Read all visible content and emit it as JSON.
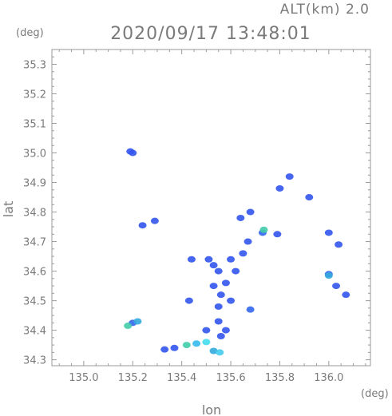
{
  "header": {
    "altitude_label": "ALT(km)  2.0",
    "timestamp": "2020/09/17 13:48:01",
    "y_unit": "(deg)",
    "x_unit": "(deg)"
  },
  "chart_data": {
    "type": "heatmap",
    "title": "2020/09/17 13:48:01",
    "subtitle": "ALT(km)  2.0",
    "xlabel": "lon",
    "ylabel": "lat",
    "xlim": [
      134.87,
      136.17
    ],
    "ylim": [
      34.28,
      35.35
    ],
    "xticks": [
      135.0,
      135.2,
      135.4,
      135.6,
      135.8,
      136.0
    ],
    "yticks": [
      34.3,
      34.4,
      34.5,
      34.6,
      34.7,
      34.8,
      34.9,
      35.0,
      35.1,
      35.2,
      35.3
    ],
    "grid": false,
    "echo_cells": [
      {
        "lon": 135.19,
        "lat": 35.005,
        "color": "#3355ee"
      },
      {
        "lon": 135.2,
        "lat": 35.0,
        "color": "#3355ee"
      },
      {
        "lon": 135.2,
        "lat": 34.425,
        "color": "#3366ee"
      },
      {
        "lon": 135.22,
        "lat": 34.43,
        "color": "#33aadd"
      },
      {
        "lon": 135.18,
        "lat": 34.415,
        "color": "#44ccaa"
      },
      {
        "lon": 135.24,
        "lat": 34.755,
        "color": "#3355ee"
      },
      {
        "lon": 135.29,
        "lat": 34.77,
        "color": "#3355ee"
      },
      {
        "lon": 135.44,
        "lat": 34.64,
        "color": "#3355ee"
      },
      {
        "lon": 135.43,
        "lat": 34.5,
        "color": "#3355ee"
      },
      {
        "lon": 135.51,
        "lat": 34.64,
        "color": "#3355ee"
      },
      {
        "lon": 135.53,
        "lat": 34.62,
        "color": "#3355ee"
      },
      {
        "lon": 135.55,
        "lat": 34.6,
        "color": "#3355ee"
      },
      {
        "lon": 135.53,
        "lat": 34.55,
        "color": "#3355ee"
      },
      {
        "lon": 135.56,
        "lat": 34.52,
        "color": "#3355ee"
      },
      {
        "lon": 135.55,
        "lat": 34.48,
        "color": "#3355ee"
      },
      {
        "lon": 135.58,
        "lat": 34.56,
        "color": "#3355ee"
      },
      {
        "lon": 135.6,
        "lat": 34.5,
        "color": "#3355ee"
      },
      {
        "lon": 135.6,
        "lat": 34.64,
        "color": "#3355ee"
      },
      {
        "lon": 135.62,
        "lat": 34.6,
        "color": "#3355ee"
      },
      {
        "lon": 135.65,
        "lat": 34.66,
        "color": "#3355ee"
      },
      {
        "lon": 135.67,
        "lat": 34.7,
        "color": "#3355ee"
      },
      {
        "lon": 135.68,
        "lat": 34.47,
        "color": "#3366ee"
      },
      {
        "lon": 135.55,
        "lat": 34.43,
        "color": "#3355ee"
      },
      {
        "lon": 135.5,
        "lat": 34.4,
        "color": "#3355ee"
      },
      {
        "lon": 135.58,
        "lat": 34.4,
        "color": "#3355ee"
      },
      {
        "lon": 135.73,
        "lat": 34.73,
        "color": "#3366ee"
      },
      {
        "lon": 135.735,
        "lat": 34.74,
        "color": "#44ccaa"
      },
      {
        "lon": 135.79,
        "lat": 34.725,
        "color": "#3355ee"
      },
      {
        "lon": 135.8,
        "lat": 34.88,
        "color": "#3355ee"
      },
      {
        "lon": 135.84,
        "lat": 34.92,
        "color": "#3355ee"
      },
      {
        "lon": 135.92,
        "lat": 34.85,
        "color": "#3355ee"
      },
      {
        "lon": 135.68,
        "lat": 34.8,
        "color": "#3355ee"
      },
      {
        "lon": 135.64,
        "lat": 34.78,
        "color": "#3355ee"
      },
      {
        "lon": 136.0,
        "lat": 34.73,
        "color": "#3355ee"
      },
      {
        "lon": 136.04,
        "lat": 34.69,
        "color": "#3355ee"
      },
      {
        "lon": 136.0,
        "lat": 34.59,
        "color": "#3366ee"
      },
      {
        "lon": 136.0,
        "lat": 34.585,
        "color": "#33aadd"
      },
      {
        "lon": 136.03,
        "lat": 34.55,
        "color": "#3355ee"
      },
      {
        "lon": 136.07,
        "lat": 34.52,
        "color": "#3355ee"
      },
      {
        "lon": 135.33,
        "lat": 34.335,
        "color": "#3355ee"
      },
      {
        "lon": 135.37,
        "lat": 34.34,
        "color": "#3355ee"
      },
      {
        "lon": 135.42,
        "lat": 34.35,
        "color": "#44ccaa"
      },
      {
        "lon": 135.46,
        "lat": 34.355,
        "color": "#33bbee"
      },
      {
        "lon": 135.5,
        "lat": 34.36,
        "color": "#44ddee"
      },
      {
        "lon": 135.53,
        "lat": 34.33,
        "color": "#33aadd"
      },
      {
        "lon": 135.555,
        "lat": 34.325,
        "color": "#44ccee"
      },
      {
        "lon": 135.56,
        "lat": 34.38,
        "color": "#3355ee"
      }
    ]
  }
}
